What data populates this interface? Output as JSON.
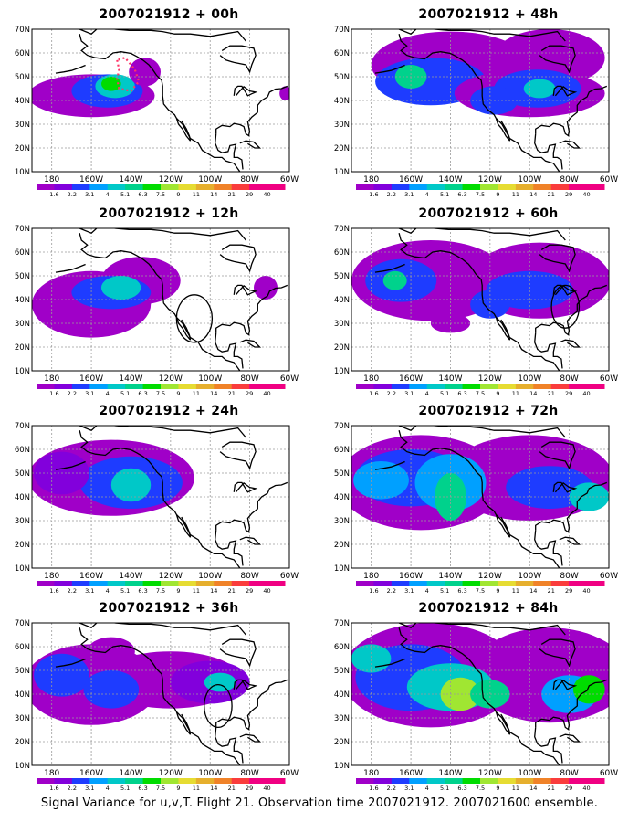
{
  "panels": [
    {
      "title": "2007021912 + 00h",
      "hours": 0
    },
    {
      "title": "2007021912 + 48h",
      "hours": 48
    },
    {
      "title": "2007021912 + 12h",
      "hours": 12
    },
    {
      "title": "2007021912 + 60h",
      "hours": 60
    },
    {
      "title": "2007021912 + 24h",
      "hours": 24
    },
    {
      "title": "2007021912 + 72h",
      "hours": 72
    },
    {
      "title": "2007021912 + 36h",
      "hours": 36
    },
    {
      "title": "2007021912 + 84h",
      "hours": 84
    }
  ],
  "lat_labels": [
    "70N",
    "60N",
    "50N",
    "40N",
    "30N",
    "20N",
    "10N"
  ],
  "lon_labels": [
    "180",
    "160W",
    "140W",
    "120W",
    "100W",
    "80W",
    "60W"
  ],
  "colorbar": {
    "labels": [
      "1.6",
      "2.2",
      "3.1",
      "4",
      "5.1",
      "6.3",
      "7.5",
      "9",
      "11",
      "14",
      "21",
      "29",
      "40"
    ],
    "colors": [
      "#a000c8",
      "#8200dc",
      "#1e3cff",
      "#00a0ff",
      "#00c8c8",
      "#00d28c",
      "#00dc00",
      "#a0e632",
      "#e6dc32",
      "#e6af2d",
      "#f08228",
      "#fa3c3c",
      "#f00082"
    ]
  },
  "footer": "Signal Variance for u,v,T. Flight 21. Observation time 2007021912. 2007021600 ensemble.",
  "colors": {
    "grid": "#9a9a9a",
    "coast": "#000000",
    "flight_track": "#ff3366"
  }
}
